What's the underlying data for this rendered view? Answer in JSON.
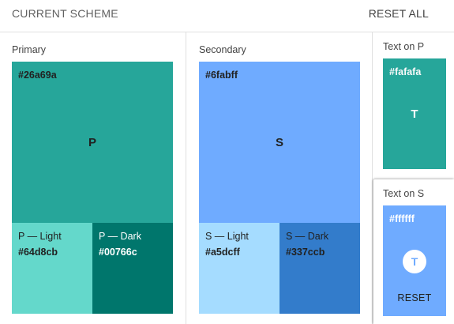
{
  "header": {
    "title": "CURRENT SCHEME",
    "reset_all": "RESET ALL"
  },
  "primary": {
    "label": "Primary",
    "main": {
      "hex": "#26a69a",
      "letter": "P",
      "color": "#26a69a",
      "text_color": "#212121"
    },
    "light": {
      "label": "P — Light",
      "hex": "#64d8cb",
      "color": "#64d8cb",
      "text_color": "#212121"
    },
    "dark": {
      "label": "P — Dark",
      "hex": "#00766c",
      "color": "#00766c",
      "text_color": "#ffffff"
    }
  },
  "secondary": {
    "label": "Secondary",
    "main": {
      "hex": "#6fabff",
      "letter": "S",
      "color": "#6fabff",
      "text_color": "#212121"
    },
    "light": {
      "label": "S — Light",
      "hex": "#a5dcff",
      "color": "#a5dcff",
      "text_color": "#212121"
    },
    "dark": {
      "label": "S — Dark",
      "hex": "#337ccb",
      "color": "#337ccb",
      "text_color": "#212121"
    }
  },
  "text_on_p": {
    "label": "Text on P",
    "hex": "#fafafa",
    "letter": "T",
    "bg_color": "#26a69a",
    "text_color": "#fafafa"
  },
  "text_on_s": {
    "label": "Text on S",
    "hex": "#ffffff",
    "letter": "T",
    "reset_label": "RESET",
    "bg_color": "#6fabff",
    "text_color": "#ffffff"
  }
}
